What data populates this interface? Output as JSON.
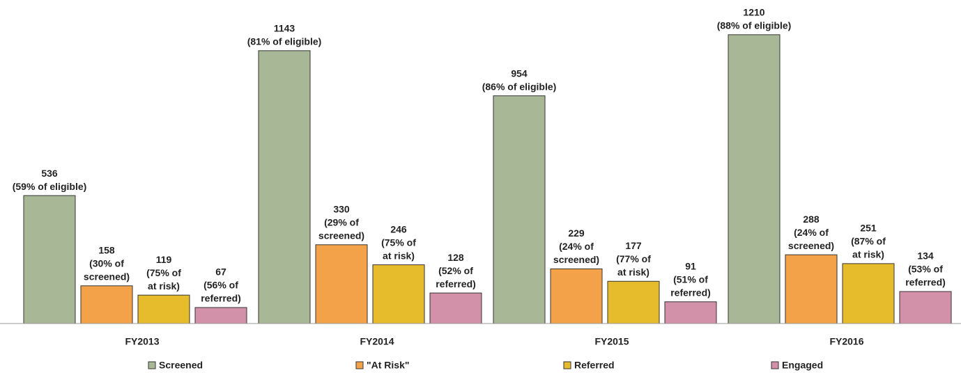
{
  "chart_data": {
    "type": "bar",
    "categories": [
      "FY2013",
      "FY2014",
      "FY2015",
      "FY2016"
    ],
    "ylim": [
      0,
      1300
    ],
    "legend": "bottom",
    "series": [
      {
        "name": "Screened",
        "color": "#a8b896",
        "values": [
          536,
          1143,
          954,
          1210
        ],
        "annotations": [
          [
            "(59% of eligible)"
          ],
          [
            "(81% of eligible)"
          ],
          [
            "(86% of eligible)"
          ],
          [
            "(88% of eligible)"
          ]
        ]
      },
      {
        "name": "\"At Risk\"",
        "color": "#f4a24a",
        "values": [
          158,
          330,
          229,
          288
        ],
        "annotations": [
          [
            "(30% of",
            "screened)"
          ],
          [
            "(29% of",
            "screened)"
          ],
          [
            "(24% of",
            "screened)"
          ],
          [
            "(24% of",
            "screened)"
          ]
        ]
      },
      {
        "name": "Referred",
        "color": "#e6bc2c",
        "values": [
          119,
          246,
          177,
          251
        ],
        "annotations": [
          [
            "(75% of",
            "at risk)"
          ],
          [
            "(75% of",
            "at risk)"
          ],
          [
            "(77% of",
            "at risk)"
          ],
          [
            "(87% of",
            "at risk)"
          ]
        ]
      },
      {
        "name": "Engaged",
        "color": "#d291a8",
        "values": [
          67,
          128,
          91,
          134
        ],
        "annotations": [
          [
            "(56% of",
            "referred)"
          ],
          [
            "(52% of",
            "referred)"
          ],
          [
            "(51% of",
            "referred)"
          ],
          [
            "(53% of",
            "referred)"
          ]
        ]
      }
    ]
  }
}
